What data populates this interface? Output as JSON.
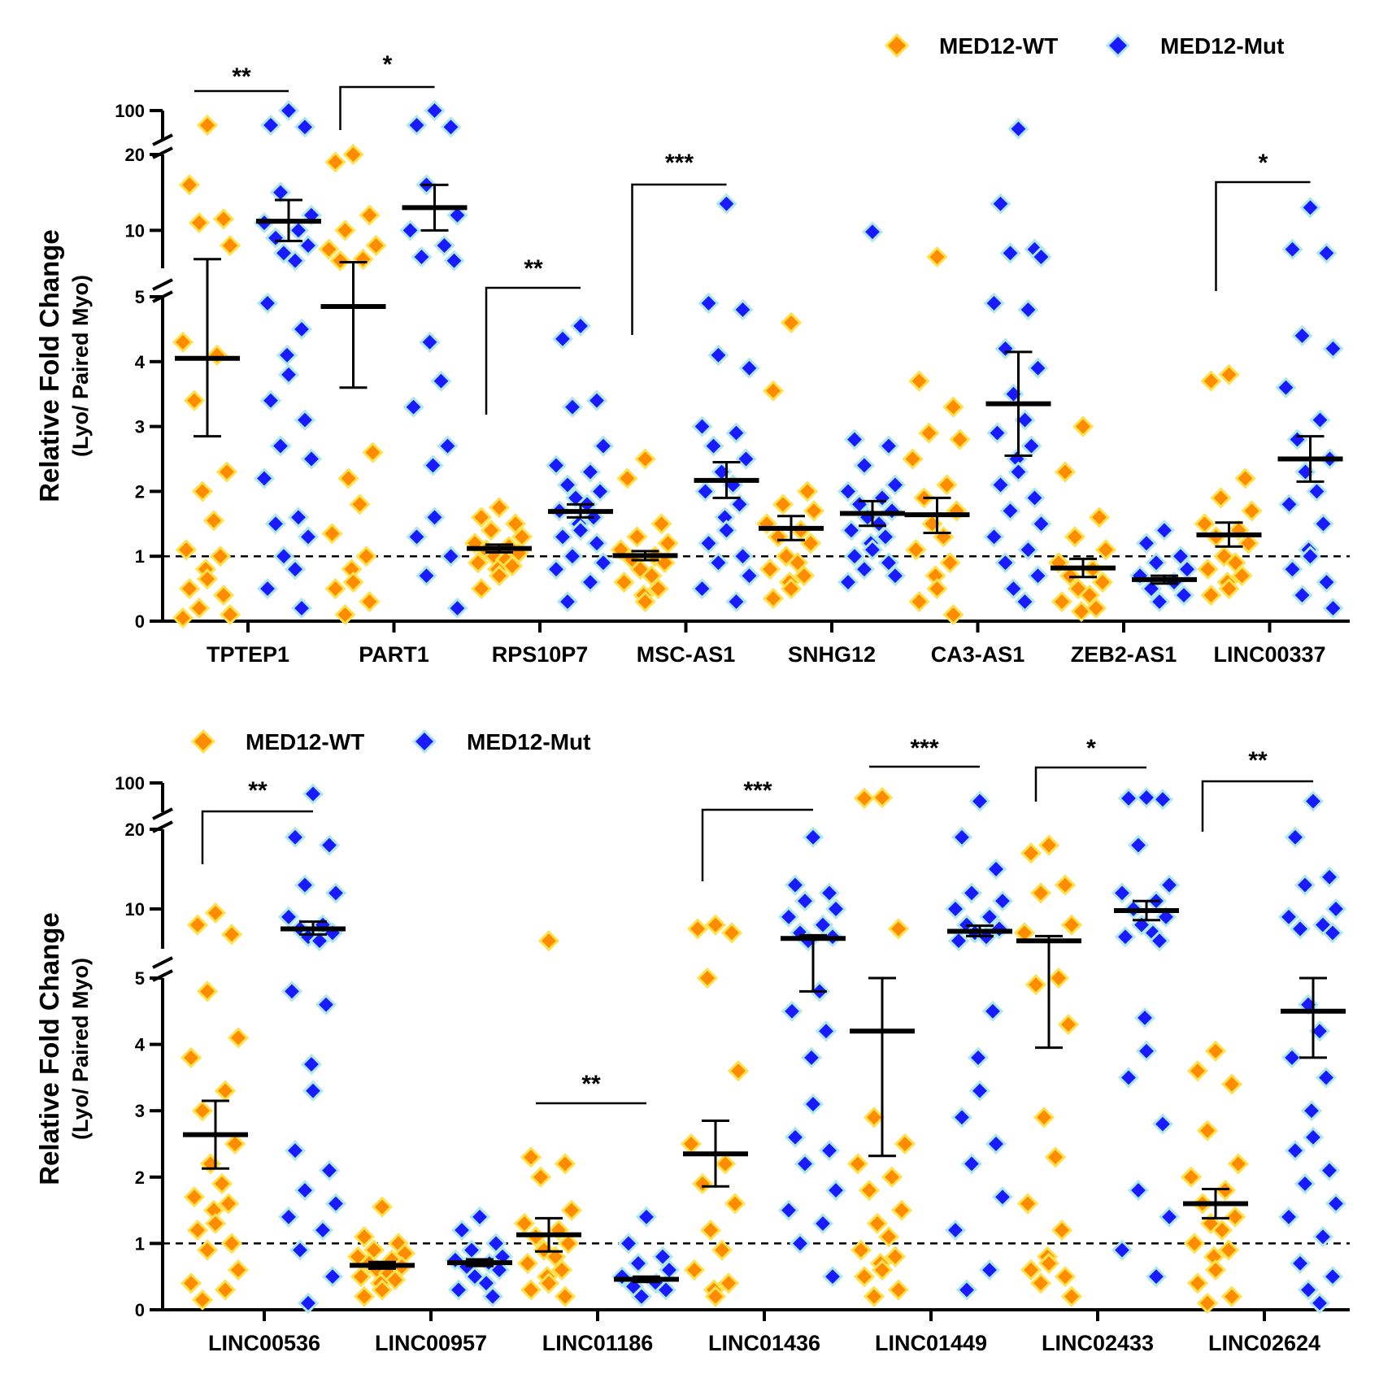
{
  "chart_data": [
    {
      "type": "scatter",
      "title": "",
      "ylabel": "Relative Fold Change",
      "ylabel_sub": "(Lyo/ Paired Myo)",
      "xlabel": "",
      "reference_line": 1,
      "y_axis_segments": [
        {
          "range": [
            0,
            5
          ],
          "ticks": [
            0,
            1,
            2,
            3,
            4,
            5
          ],
          "tick_labels": [
            "0",
            "1",
            "2",
            "3",
            "4",
            "5"
          ]
        },
        {
          "range": [
            5,
            20
          ],
          "ticks": [
            10,
            20
          ],
          "tick_labels": [
            "10",
            "20"
          ]
        },
        {
          "range": [
            20,
            100
          ],
          "ticks": [
            100
          ],
          "tick_labels": [
            "100"
          ]
        }
      ],
      "legend": {
        "position": "top-right",
        "entries": [
          {
            "name": "MED12-WT",
            "color": "#ff8c00",
            "edge": "#ffe14d"
          },
          {
            "name": "MED12-Mut",
            "color": "#1a1aff",
            "edge": "#aee8ee"
          }
        ]
      },
      "categories": [
        "TPTEP1",
        "PART1",
        "RPS10P7",
        "MSC-AS1",
        "SNHG12",
        "CA3-AS1",
        "ZEB2-AS1",
        "LINC00337"
      ],
      "series": [
        {
          "name": "MED12-WT",
          "mean": [
            4.05,
            4.85,
            1.12,
            1.01,
            1.43,
            1.64,
            0.82,
            1.33
          ],
          "sem_low": [
            2.85,
            3.6,
            1.06,
            0.94,
            1.25,
            1.36,
            0.68,
            1.15
          ],
          "sem_high": [
            6.2,
            5.8,
            1.18,
            1.08,
            1.62,
            1.9,
            0.96,
            1.52
          ],
          "points": [
            [
              60,
              16,
              11.5,
              11,
              8,
              4.3,
              4.1,
              3.4,
              2.3,
              2.0,
              1.55,
              1.1,
              1.0,
              0.8,
              0.65,
              0.5,
              0.4,
              0.2,
              0.1,
              0.05
            ],
            [
              20,
              19,
              12,
              10,
              8,
              7.5,
              6.2,
              6,
              2.6,
              2.2,
              1.8,
              1.35,
              1.0,
              0.8,
              0.6,
              0.5,
              0.3,
              0.1
            ],
            [
              1.75,
              1.6,
              1.5,
              1.4,
              1.3,
              1.2,
              1.15,
              1.1,
              1.05,
              1.0,
              0.95,
              0.9,
              0.85,
              0.8,
              0.7,
              0.5
            ],
            [
              2.5,
              2.2,
              1.5,
              1.3,
              1.2,
              1.1,
              1.0,
              0.95,
              0.9,
              0.8,
              0.7,
              0.6,
              0.5,
              0.4,
              0.3
            ],
            [
              4.6,
              3.55,
              2.0,
              1.8,
              1.7,
              1.5,
              1.4,
              1.3,
              1.2,
              1.0,
              0.9,
              0.8,
              0.7,
              0.6,
              0.5,
              0.35
            ],
            [
              6.5,
              3.7,
              3.3,
              2.9,
              2.8,
              2.5,
              2.1,
              1.9,
              1.7,
              1.5,
              1.3,
              1.1,
              0.9,
              0.7,
              0.5,
              0.3,
              0.1
            ],
            [
              3.0,
              2.3,
              1.6,
              1.3,
              1.1,
              0.9,
              0.8,
              0.7,
              0.6,
              0.5,
              0.4,
              0.3,
              0.2,
              0.15
            ],
            [
              3.8,
              3.7,
              2.2,
              1.9,
              1.7,
              1.5,
              1.4,
              1.3,
              1.2,
              1.0,
              0.9,
              0.8,
              0.7,
              0.6,
              0.5,
              0.4
            ]
          ]
        },
        {
          "name": "MED12-Mut",
          "mean": [
            11.2,
            13.0,
            1.69,
            2.17,
            1.66,
            3.35,
            0.64,
            2.5
          ],
          "sem_low": [
            8.6,
            10.0,
            1.6,
            1.9,
            1.47,
            2.55,
            0.58,
            2.15
          ],
          "sem_high": [
            14.0,
            16.0,
            1.8,
            2.45,
            1.85,
            4.15,
            0.7,
            2.85
          ],
          "points": [
            [
              100,
              60,
              55,
              15,
              12,
              11,
              10,
              9,
              8,
              7,
              6,
              4.9,
              4.5,
              4.1,
              3.8,
              3.4,
              3.1,
              2.7,
              2.5,
              2.2,
              1.6,
              1.5,
              1.3,
              1.0,
              0.8,
              0.5,
              0.2
            ],
            [
              100,
              60,
              55,
              16,
              12,
              10,
              8,
              6.5,
              6,
              4.3,
              3.7,
              3.3,
              2.7,
              2.4,
              1.6,
              1.3,
              1.0,
              0.7,
              0.2
            ],
            [
              4.55,
              4.35,
              3.4,
              3.3,
              2.7,
              2.4,
              2.3,
              2.1,
              2.0,
              1.9,
              1.8,
              1.7,
              1.6,
              1.5,
              1.4,
              1.3,
              1.2,
              1.0,
              0.9,
              0.8,
              0.6,
              0.3
            ],
            [
              13.5,
              4.9,
              4.8,
              4.1,
              3.9,
              3.0,
              2.9,
              2.7,
              2.5,
              2.3,
              2.1,
              2.0,
              1.8,
              1.6,
              1.4,
              1.2,
              1.0,
              0.9,
              0.7,
              0.5,
              0.3
            ],
            [
              9.8,
              2.8,
              2.7,
              2.4,
              2.1,
              2.0,
              1.9,
              1.8,
              1.7,
              1.6,
              1.5,
              1.4,
              1.3,
              1.2,
              1.1,
              1.0,
              0.9,
              0.8,
              0.7,
              0.6
            ],
            [
              50,
              13.5,
              7.5,
              7.0,
              6.5,
              4.9,
              4.8,
              4.2,
              3.9,
              3.5,
              3.1,
              2.9,
              2.7,
              2.5,
              2.3,
              2.1,
              1.9,
              1.7,
              1.5,
              1.3,
              1.1,
              0.9,
              0.7,
              0.5,
              0.3
            ],
            [
              1.4,
              1.2,
              1.0,
              0.9,
              0.8,
              0.7,
              0.6,
              0.5,
              0.4,
              0.3
            ],
            [
              13,
              7.5,
              7.0,
              4.4,
              4.2,
              3.6,
              3.1,
              2.8,
              2.5,
              2.3,
              2.0,
              1.8,
              1.5,
              1.1,
              1.0,
              0.8,
              0.6,
              0.4,
              0.2
            ]
          ]
        }
      ],
      "significance": [
        {
          "pair": [
            0,
            0
          ],
          "label": "**"
        },
        {
          "pair": [
            1,
            1
          ],
          "label": "*"
        },
        {
          "pair": [
            2,
            2
          ],
          "label": "**"
        },
        {
          "pair": [
            3,
            3
          ],
          "label": "***"
        },
        {
          "pair": [
            7,
            7
          ],
          "label": "*"
        }
      ]
    },
    {
      "type": "scatter",
      "title": "",
      "ylabel": "Relative Fold Change",
      "ylabel_sub": "(Lyo/ Paired Myo)",
      "xlabel": "",
      "reference_line": 1,
      "y_axis_segments": [
        {
          "range": [
            0,
            5
          ],
          "ticks": [
            0,
            1,
            2,
            3,
            4,
            5
          ],
          "tick_labels": [
            "0",
            "1",
            "2",
            "3",
            "4",
            "5"
          ]
        },
        {
          "range": [
            5,
            20
          ],
          "ticks": [
            10,
            20
          ],
          "tick_labels": [
            "10",
            "20"
          ]
        },
        {
          "range": [
            20,
            100
          ],
          "ticks": [
            100
          ],
          "tick_labels": [
            "100"
          ]
        }
      ],
      "legend": {
        "position": "top-left",
        "entries": [
          {
            "name": "MED12-WT",
            "color": "#ff8c00",
            "edge": "#ffe14d"
          },
          {
            "name": "MED12-Mut",
            "color": "#1a1aff",
            "edge": "#aee8ee"
          }
        ]
      },
      "categories": [
        "LINC00536",
        "LINC00957",
        "LINC01186",
        "LINC01436",
        "LINC01449",
        "LINC02433",
        "LINC02624"
      ],
      "series": [
        {
          "name": "MED12-WT",
          "mean": [
            2.64,
            0.67,
            1.13,
            2.35,
            4.2,
            6.0,
            1.6
          ],
          "sem_low": [
            2.13,
            0.62,
            0.88,
            1.86,
            2.32,
            3.95,
            1.38
          ],
          "sem_high": [
            3.15,
            0.72,
            1.38,
            2.85,
            5.0,
            6.6,
            1.82
          ],
          "points": [
            [
              9.5,
              8,
              6.8,
              4.8,
              4.1,
              3.8,
              3.3,
              3.0,
              2.5,
              2.2,
              1.9,
              1.7,
              1.6,
              1.5,
              1.3,
              1.2,
              1.0,
              0.9,
              0.6,
              0.4,
              0.3,
              0.15
            ],
            [
              1.55,
              1.1,
              1.0,
              0.9,
              0.85,
              0.8,
              0.75,
              0.7,
              0.65,
              0.6,
              0.55,
              0.5,
              0.45,
              0.4,
              0.3,
              0.2
            ],
            [
              6.0,
              2.3,
              2.2,
              2.0,
              1.5,
              1.3,
              1.2,
              1.1,
              1.0,
              0.9,
              0.8,
              0.7,
              0.6,
              0.5,
              0.4,
              0.3,
              0.2
            ],
            [
              8,
              7.5,
              7,
              5.0,
              3.6,
              2.5,
              2.2,
              1.9,
              1.6,
              1.2,
              0.9,
              0.6,
              0.4,
              0.3,
              0.2
            ],
            [
              60,
              58,
              7.5,
              2.9,
              2.5,
              2.2,
              2.0,
              1.8,
              1.5,
              1.3,
              1.1,
              0.9,
              0.8,
              0.7,
              0.6,
              0.5,
              0.3,
              0.2
            ],
            [
              18,
              17,
              13,
              12,
              8,
              7,
              5,
              4.9,
              4.3,
              2.9,
              2.3,
              1.6,
              1.2,
              0.8,
              0.7,
              0.6,
              0.5,
              0.4,
              0.2
            ],
            [
              3.9,
              3.6,
              3.4,
              2.7,
              2.2,
              2.0,
              1.8,
              1.6,
              1.4,
              1.3,
              1.2,
              1.0,
              0.9,
              0.8,
              0.6,
              0.4,
              0.2,
              0.1
            ]
          ]
        },
        {
          "name": "MED12-Mut",
          "mean": [
            7.5,
            0.71,
            0.46,
            6.3,
            7.2,
            9.8,
            4.5
          ],
          "sem_low": [
            6.8,
            0.66,
            0.42,
            4.8,
            6.6,
            8.6,
            3.8
          ],
          "sem_high": [
            8.4,
            0.76,
            0.5,
            6.7,
            7.9,
            11.0,
            5.0
          ],
          "points": [
            [
              70,
              19,
              18,
              13,
              12,
              9,
              8,
              7.5,
              7,
              6.5,
              6,
              4.8,
              4.6,
              3.7,
              3.3,
              2.4,
              2.1,
              1.8,
              1.6,
              1.4,
              1.2,
              0.9,
              0.5,
              0.1
            ],
            [
              1.4,
              1.2,
              1.0,
              0.9,
              0.8,
              0.75,
              0.7,
              0.65,
              0.6,
              0.5,
              0.4,
              0.3,
              0.2
            ],
            [
              1.4,
              1.0,
              0.8,
              0.7,
              0.6,
              0.5,
              0.4,
              0.35,
              0.3,
              0.2
            ],
            [
              19,
              13,
              12,
              11,
              10,
              9,
              8,
              7,
              6.5,
              6,
              4.8,
              4.5,
              4.2,
              3.8,
              3.1,
              2.6,
              2.4,
              2.2,
              1.8,
              1.5,
              1.3,
              1.0,
              0.5
            ],
            [
              50,
              19,
              15,
              12,
              11,
              10,
              9,
              8,
              7.5,
              7,
              6.5,
              6,
              4.5,
              3.8,
              3.3,
              2.9,
              2.5,
              2.2,
              1.7,
              1.2,
              0.6,
              0.3
            ],
            [
              60,
              58,
              55,
              18,
              13,
              12,
              11,
              10,
              9,
              8,
              7,
              6.5,
              6,
              4.4,
              3.9,
              3.5,
              2.8,
              1.8,
              1.4,
              0.9,
              0.5
            ],
            [
              50,
              19,
              14,
              13,
              10,
              9,
              8,
              7.5,
              7,
              4.6,
              4.2,
              3.8,
              3.5,
              3.0,
              2.6,
              2.4,
              2.1,
              1.9,
              1.6,
              1.4,
              1.1,
              0.7,
              0.5,
              0.3,
              0.1
            ]
          ]
        }
      ],
      "significance": [
        {
          "pair": [
            0,
            0
          ],
          "label": "**"
        },
        {
          "pair": [
            2,
            2
          ],
          "label": "**"
        },
        {
          "pair": [
            3,
            3
          ],
          "label": "***"
        },
        {
          "pair": [
            4,
            4
          ],
          "label": "***"
        },
        {
          "pair": [
            5,
            5
          ],
          "label": "*"
        },
        {
          "pair": [
            6,
            6
          ],
          "label": "**"
        }
      ]
    }
  ]
}
